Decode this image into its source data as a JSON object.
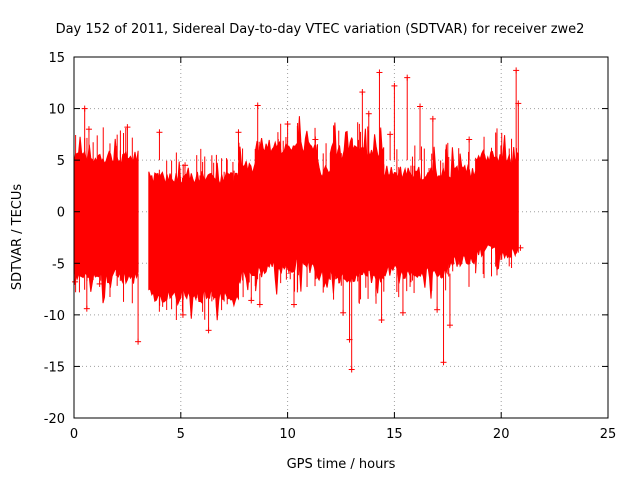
{
  "chart_data": {
    "type": "scatter",
    "title": "Day 152 of 2011, Sidereal Day-to-day VTEC variation (SDTVAR) for receiver zwe2",
    "xlabel": "GPS time / hours",
    "ylabel": "SDTVAR / TECUs",
    "xlim": [
      0,
      25
    ],
    "ylim": [
      -20,
      15
    ],
    "xticks": [
      "0",
      "5",
      "10",
      "15",
      "20",
      "25"
    ],
    "yticks": [
      "15",
      "10",
      "5",
      "0",
      "-5",
      "-10",
      "-15",
      "-20"
    ],
    "grid": true,
    "marker": "+",
    "series_color": "#ff0000",
    "grid_color": "#a0a0a0",
    "series": [
      {
        "name": "zwe2",
        "segments": [
          {
            "x": [
              0.0,
              3.0
            ],
            "low": -6.0,
            "high": 5.0
          },
          {
            "x": [
              3.5,
              7.7
            ],
            "low": -7.8,
            "high": 3.0
          },
          {
            "x": [
              7.7,
              8.5
            ],
            "low": -6.0,
            "high": 4.0
          },
          {
            "x": [
              8.5,
              11.4
            ],
            "low": -5.0,
            "high": 6.0
          },
          {
            "x": [
              11.4,
              12.0
            ],
            "low": -6.0,
            "high": 3.5
          },
          {
            "x": [
              12.0,
              14.5
            ],
            "low": -6.0,
            "high": 5.5
          },
          {
            "x": [
              14.5,
              17.5
            ],
            "low": -5.5,
            "high": 3.5
          },
          {
            "x": [
              17.5,
              18.8
            ],
            "low": -4.5,
            "high": 3.5
          },
          {
            "x": [
              18.8,
              20.8
            ],
            "low": -3.5,
            "high": 5.0
          }
        ],
        "outliers": [
          {
            "x": 0.05,
            "y": -6.8
          },
          {
            "x": 0.5,
            "y": 10.0
          },
          {
            "x": 0.6,
            "y": -9.4
          },
          {
            "x": 0.7,
            "y": 8.0
          },
          {
            "x": 1.2,
            "y": -7.0
          },
          {
            "x": 2.5,
            "y": 8.2
          },
          {
            "x": 3.0,
            "y": -12.6
          },
          {
            "x": 4.0,
            "y": 7.7
          },
          {
            "x": 5.1,
            "y": -10.0
          },
          {
            "x": 5.2,
            "y": 4.5
          },
          {
            "x": 6.3,
            "y": -11.5
          },
          {
            "x": 7.7,
            "y": 7.7
          },
          {
            "x": 8.3,
            "y": -8.6
          },
          {
            "x": 8.6,
            "y": 10.3
          },
          {
            "x": 8.7,
            "y": -9.0
          },
          {
            "x": 10.0,
            "y": 8.5
          },
          {
            "x": 10.3,
            "y": -9.0
          },
          {
            "x": 11.3,
            "y": 7.0
          },
          {
            "x": 12.6,
            "y": -9.8
          },
          {
            "x": 12.9,
            "y": -12.4
          },
          {
            "x": 13.0,
            "y": -15.3
          },
          {
            "x": 13.5,
            "y": 11.6
          },
          {
            "x": 13.8,
            "y": 9.5
          },
          {
            "x": 14.3,
            "y": 13.5
          },
          {
            "x": 14.4,
            "y": -10.5
          },
          {
            "x": 14.8,
            "y": 7.5
          },
          {
            "x": 15.0,
            "y": 12.2
          },
          {
            "x": 15.4,
            "y": -9.8
          },
          {
            "x": 15.6,
            "y": 13.0
          },
          {
            "x": 16.2,
            "y": 10.2
          },
          {
            "x": 16.8,
            "y": 9.0
          },
          {
            "x": 17.0,
            "y": -9.5
          },
          {
            "x": 17.3,
            "y": -14.6
          },
          {
            "x": 17.6,
            "y": -11.0
          },
          {
            "x": 18.5,
            "y": 7.0
          },
          {
            "x": 20.7,
            "y": 13.7
          },
          {
            "x": 20.8,
            "y": 10.5
          },
          {
            "x": 20.9,
            "y": -3.5
          }
        ]
      }
    ]
  }
}
